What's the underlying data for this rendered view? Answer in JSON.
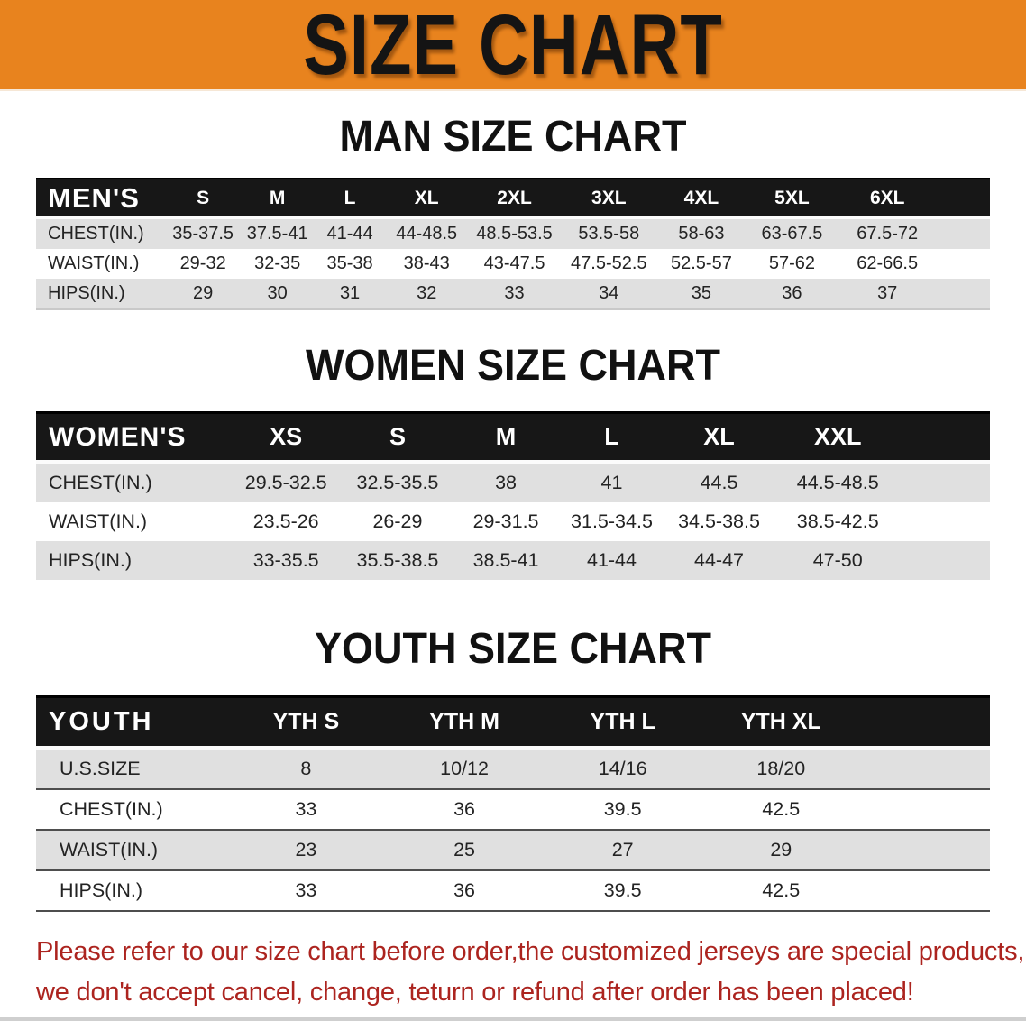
{
  "colors": {
    "banner_bg": "#E8831E",
    "header_black": "#171717",
    "row_gray": "#E0E0E0",
    "disclaimer_red": "#AC241F"
  },
  "banner": {
    "title": "SIZE CHART"
  },
  "sections": {
    "men": {
      "title": "MAN SIZE CHART",
      "header_label": "MEN'S",
      "sizes": [
        "S",
        "M",
        "L",
        "XL",
        "2XL",
        "3XL",
        "4XL",
        "5XL",
        "6XL"
      ],
      "rows": [
        {
          "label": "CHEST(IN.)",
          "values": [
            "35-37.5",
            "37.5-41",
            "41-44",
            "44-48.5",
            "48.5-53.5",
            "53.5-58",
            "58-63",
            "63-67.5",
            "67.5-72"
          ]
        },
        {
          "label": "WAIST(IN.)",
          "values": [
            "29-32",
            "32-35",
            "35-38",
            "38-43",
            "43-47.5",
            "47.5-52.5",
            "52.5-57",
            "57-62",
            "62-66.5"
          ]
        },
        {
          "label": "HIPS(IN.)",
          "values": [
            "29",
            "30",
            "31",
            "32",
            "33",
            "34",
            "35",
            "36",
            "37"
          ]
        }
      ]
    },
    "women": {
      "title": "WOMEN SIZE CHART",
      "header_label": "WOMEN'S",
      "sizes": [
        "XS",
        "S",
        "M",
        "L",
        "XL",
        "XXL"
      ],
      "rows": [
        {
          "label": "CHEST(IN.)",
          "values": [
            "29.5-32.5",
            "32.5-35.5",
            "38",
            "41",
            "44.5",
            "44.5-48.5"
          ]
        },
        {
          "label": "WAIST(IN.)",
          "values": [
            "23.5-26",
            "26-29",
            "29-31.5",
            "31.5-34.5",
            "34.5-38.5",
            "38.5-42.5"
          ]
        },
        {
          "label": "HIPS(IN.)",
          "values": [
            "33-35.5",
            "35.5-38.5",
            "38.5-41",
            "41-44",
            "44-47",
            "47-50"
          ]
        }
      ]
    },
    "youth": {
      "title": "YOUTH SIZE CHART",
      "header_label": "YOUTH",
      "sizes": [
        "YTH S",
        "YTH M",
        "YTH L",
        "YTH XL"
      ],
      "rows": [
        {
          "label": "U.S.SIZE",
          "values": [
            "8",
            "10/12",
            "14/16",
            "18/20"
          ]
        },
        {
          "label": "CHEST(IN.)",
          "values": [
            "33",
            "36",
            "39.5",
            "42.5"
          ]
        },
        {
          "label": "WAIST(IN.)",
          "values": [
            "23",
            "25",
            "27",
            "29"
          ]
        },
        {
          "label": "HIPS(IN.)",
          "values": [
            "33",
            "36",
            "39.5",
            "42.5"
          ]
        }
      ]
    }
  },
  "disclaimer": {
    "line1": "Please refer to our size chart before order,the customized jerseys are special products,",
    "line2": "we don't accept cancel, change, teturn or refund after order has been placed!"
  }
}
